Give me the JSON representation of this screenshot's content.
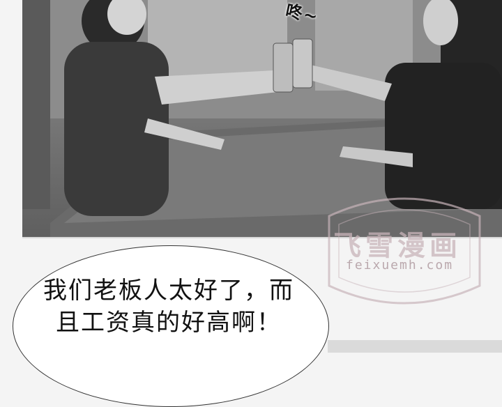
{
  "comic": {
    "sound_effect": "咚~",
    "speech_bubble": "我们老板人太好了，而且工资真的好高啊！",
    "watermark": {
      "logo": "飞雪漫画",
      "url": "feixuemh.com"
    }
  }
}
